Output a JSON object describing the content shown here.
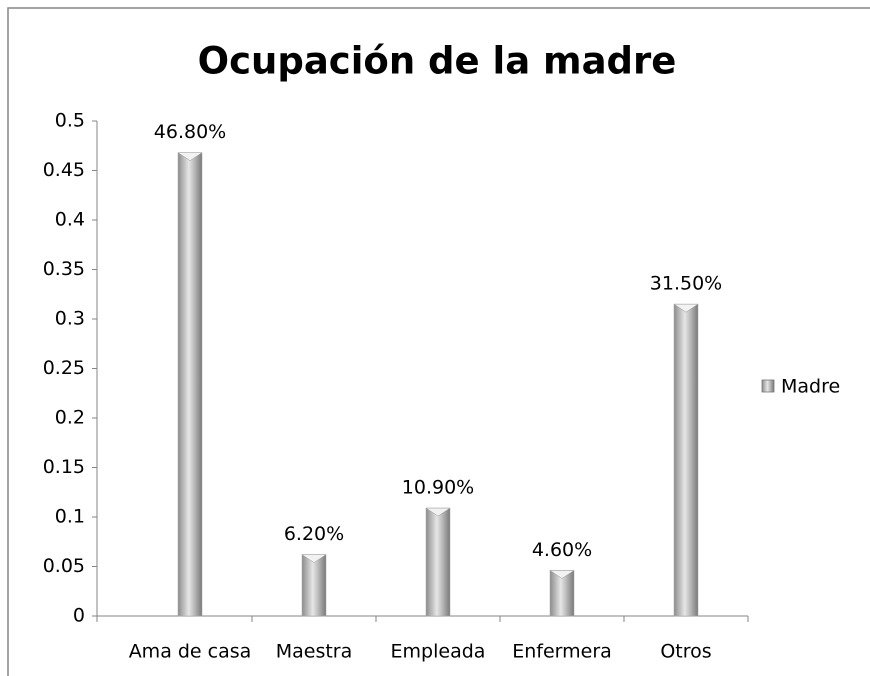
{
  "chart_data": {
    "type": "bar",
    "title": "Ocupación de la madre",
    "categories": [
      "Ama de casa",
      "Maestra",
      "Empleada",
      "Enfermera",
      "Otros"
    ],
    "series": [
      {
        "name": "Madre",
        "color": "#a6a6a6",
        "values": [
          0.468,
          0.062,
          0.109,
          0.046,
          0.315
        ],
        "value_labels": [
          "46.80%",
          "6.20%",
          "10.90%",
          "4.60%",
          "31.50%"
        ]
      }
    ],
    "ylim": [
      0,
      0.5
    ],
    "yticks": [
      0,
      0.05,
      0.1,
      0.15,
      0.2,
      0.25,
      0.3,
      0.35,
      0.4,
      0.45,
      0.5
    ],
    "legend": "right"
  }
}
